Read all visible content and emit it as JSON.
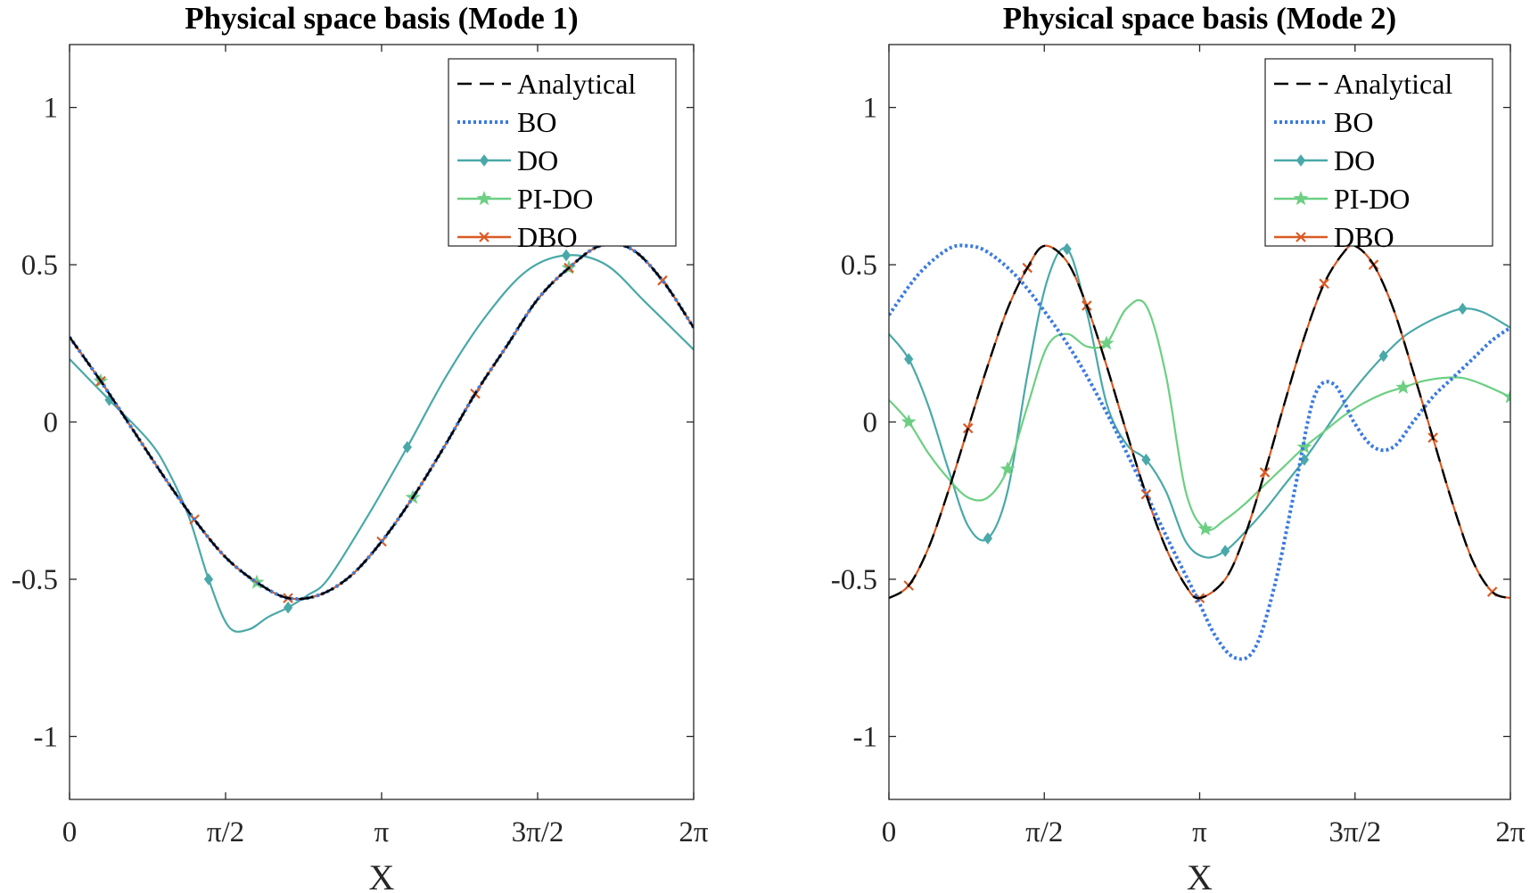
{
  "figure": {
    "panel_count": 2
  },
  "chart_data": [
    {
      "type": "line",
      "title": "Physical space basis (Mode 1)",
      "xlabel": "X",
      "ylabel": "",
      "xlim": [
        0,
        6.2832
      ],
      "ylim": [
        -1.2,
        1.2
      ],
      "xticks": [
        0,
        1.5708,
        3.1416,
        4.7124,
        6.2832
      ],
      "xticklabels": [
        "0",
        "π/2",
        "π",
        "3π/2",
        "2π"
      ],
      "yticks": [
        -1,
        -0.5,
        0,
        0.5,
        1
      ],
      "yticklabels": [
        "-1",
        "-0.5",
        "0",
        "0.5",
        "1"
      ],
      "grid": false,
      "legend_position": "top-right",
      "series": [
        {
          "name": "Analytical",
          "color": "#000000",
          "style": "dashed",
          "marker": "none",
          "x": [
            0,
            0.314,
            0.628,
            0.942,
            1.257,
            1.571,
            1.885,
            2.199,
            2.513,
            2.827,
            3.142,
            3.456,
            3.77,
            4.084,
            4.398,
            4.712,
            5.027,
            5.341,
            5.655,
            5.969,
            6.283
          ],
          "y": [
            0.27,
            0.13,
            -0.02,
            -0.17,
            -0.31,
            -0.43,
            -0.51,
            -0.56,
            -0.55,
            -0.49,
            -0.38,
            -0.24,
            -0.08,
            0.09,
            0.24,
            0.39,
            0.49,
            0.56,
            0.55,
            0.45,
            0.3
          ]
        },
        {
          "name": "BO",
          "color": "#3b7ae0",
          "style": "dotted",
          "marker": "none",
          "x": [
            0,
            0.314,
            0.628,
            0.942,
            1.257,
            1.571,
            1.885,
            2.199,
            2.513,
            2.827,
            3.142,
            3.456,
            3.77,
            4.084,
            4.398,
            4.712,
            5.027,
            5.341,
            5.655,
            5.969,
            6.283
          ],
          "y": [
            0.27,
            0.13,
            -0.02,
            -0.17,
            -0.31,
            -0.43,
            -0.51,
            -0.56,
            -0.55,
            -0.49,
            -0.38,
            -0.24,
            -0.08,
            0.09,
            0.24,
            0.39,
            0.49,
            0.56,
            0.55,
            0.45,
            0.3
          ]
        },
        {
          "name": "DO",
          "color": "#4aa8a8",
          "style": "solid",
          "marker": "diamond",
          "x": [
            0,
            0.4,
            0.8,
            1.0,
            1.2,
            1.4,
            1.6,
            1.8,
            2.0,
            2.2,
            2.4,
            2.6,
            3.0,
            3.4,
            3.8,
            4.2,
            4.6,
            5.0,
            5.4,
            5.8,
            6.283
          ],
          "y": [
            0.2,
            0.07,
            -0.06,
            -0.16,
            -0.3,
            -0.5,
            -0.65,
            -0.66,
            -0.62,
            -0.59,
            -0.55,
            -0.5,
            -0.3,
            -0.08,
            0.15,
            0.34,
            0.48,
            0.53,
            0.5,
            0.38,
            0.23
          ]
        },
        {
          "name": "PI-DO",
          "color": "#6ccf82",
          "style": "solid",
          "marker": "star",
          "x": [
            0,
            0.314,
            0.628,
            0.942,
            1.257,
            1.571,
            1.885,
            2.199,
            2.513,
            2.827,
            3.142,
            3.456,
            3.77,
            4.084,
            4.398,
            4.712,
            5.027,
            5.341,
            5.655,
            5.969,
            6.283
          ],
          "y": [
            0.27,
            0.13,
            -0.02,
            -0.17,
            -0.31,
            -0.43,
            -0.51,
            -0.56,
            -0.55,
            -0.49,
            -0.38,
            -0.24,
            -0.08,
            0.09,
            0.24,
            0.39,
            0.49,
            0.56,
            0.55,
            0.45,
            0.3
          ]
        },
        {
          "name": "DBO",
          "color": "#d95a24",
          "style": "solid",
          "marker": "x",
          "x": [
            0,
            0.314,
            0.628,
            0.942,
            1.257,
            1.571,
            1.885,
            2.199,
            2.513,
            2.827,
            3.142,
            3.456,
            3.77,
            4.084,
            4.398,
            4.712,
            5.027,
            5.341,
            5.655,
            5.969,
            6.283
          ],
          "y": [
            0.27,
            0.13,
            -0.02,
            -0.17,
            -0.31,
            -0.43,
            -0.51,
            -0.56,
            -0.55,
            -0.49,
            -0.38,
            -0.24,
            -0.08,
            0.09,
            0.24,
            0.39,
            0.49,
            0.56,
            0.55,
            0.45,
            0.3
          ]
        }
      ]
    },
    {
      "type": "line",
      "title": "Physical space basis (Mode 2)",
      "xlabel": "X",
      "ylabel": "",
      "xlim": [
        0,
        6.2832
      ],
      "ylim": [
        -1.2,
        1.2
      ],
      "xticks": [
        0,
        1.5708,
        3.1416,
        4.7124,
        6.2832
      ],
      "xticklabels": [
        "0",
        "π/2",
        "π",
        "3π/2",
        "2π"
      ],
      "yticks": [
        -1,
        -0.5,
        0,
        0.5,
        1
      ],
      "yticklabels": [
        "-1",
        "-0.5",
        "0",
        "0.5",
        "1"
      ],
      "grid": false,
      "legend_position": "top-right",
      "series": [
        {
          "name": "Analytical",
          "color": "#000000",
          "style": "dashed",
          "marker": "none",
          "x": [
            0,
            0.2,
            0.4,
            0.6,
            0.8,
            1.0,
            1.2,
            1.4,
            1.571,
            1.8,
            2.0,
            2.2,
            2.4,
            2.6,
            2.8,
            3.0,
            3.142,
            3.4,
            3.6,
            3.8,
            4.0,
            4.2,
            4.4,
            4.6,
            4.712,
            4.9,
            5.1,
            5.3,
            5.5,
            5.7,
            5.9,
            6.1,
            6.283
          ],
          "y": [
            -0.56,
            -0.52,
            -0.4,
            -0.22,
            -0.02,
            0.18,
            0.36,
            0.49,
            0.56,
            0.51,
            0.37,
            0.18,
            -0.03,
            -0.23,
            -0.4,
            -0.52,
            -0.56,
            -0.5,
            -0.36,
            -0.16,
            0.06,
            0.27,
            0.44,
            0.54,
            0.56,
            0.5,
            0.36,
            0.16,
            -0.05,
            -0.26,
            -0.44,
            -0.54,
            -0.56
          ]
        },
        {
          "name": "BO",
          "color": "#3b7ae0",
          "style": "dotted",
          "marker": "none",
          "x": [
            0,
            0.3,
            0.6,
            0.8,
            1.0,
            1.3,
            1.6,
            1.9,
            2.2,
            2.5,
            2.8,
            3.1,
            3.3,
            3.5,
            3.7,
            3.9,
            4.1,
            4.3,
            4.5,
            4.7,
            4.9,
            5.1,
            5.3,
            5.5,
            5.7,
            5.9,
            6.1,
            6.283
          ],
          "y": [
            0.34,
            0.47,
            0.55,
            0.56,
            0.54,
            0.46,
            0.34,
            0.2,
            0.03,
            -0.16,
            -0.36,
            -0.55,
            -0.68,
            -0.75,
            -0.72,
            -0.52,
            -0.22,
            0.08,
            0.12,
            0.0,
            -0.08,
            -0.08,
            0.0,
            0.08,
            0.14,
            0.2,
            0.26,
            0.3
          ]
        },
        {
          "name": "DO",
          "color": "#4aa8a8",
          "style": "solid",
          "marker": "diamond",
          "x": [
            0,
            0.2,
            0.4,
            0.6,
            0.8,
            1.0,
            1.2,
            1.4,
            1.6,
            1.8,
            2.0,
            2.2,
            2.4,
            2.6,
            2.8,
            3.0,
            3.2,
            3.4,
            3.6,
            3.8,
            4.0,
            4.2,
            4.4,
            4.6,
            4.8,
            5.0,
            5.2,
            5.4,
            5.6,
            5.8,
            6.0,
            6.283
          ],
          "y": [
            0.28,
            0.2,
            0.05,
            -0.15,
            -0.33,
            -0.37,
            -0.22,
            0.15,
            0.45,
            0.55,
            0.35,
            0.06,
            -0.07,
            -0.12,
            -0.22,
            -0.38,
            -0.43,
            -0.41,
            -0.35,
            -0.28,
            -0.2,
            -0.12,
            -0.03,
            0.06,
            0.14,
            0.21,
            0.27,
            0.31,
            0.34,
            0.36,
            0.35,
            0.3
          ]
        },
        {
          "name": "PI-DO",
          "color": "#6ccf82",
          "style": "solid",
          "marker": "star",
          "x": [
            0,
            0.2,
            0.4,
            0.6,
            0.8,
            1.0,
            1.2,
            1.4,
            1.6,
            1.8,
            2.0,
            2.2,
            2.4,
            2.6,
            2.8,
            3.0,
            3.2,
            3.4,
            3.6,
            3.8,
            4.0,
            4.2,
            4.4,
            4.6,
            4.8,
            5.0,
            5.2,
            5.4,
            5.6,
            5.8,
            6.0,
            6.283
          ],
          "y": [
            0.07,
            0.0,
            -0.1,
            -0.18,
            -0.24,
            -0.24,
            -0.15,
            0.05,
            0.24,
            0.28,
            0.24,
            0.25,
            0.36,
            0.37,
            0.15,
            -0.22,
            -0.34,
            -0.31,
            -0.26,
            -0.2,
            -0.14,
            -0.08,
            -0.03,
            0.02,
            0.06,
            0.09,
            0.11,
            0.13,
            0.14,
            0.14,
            0.12,
            0.08
          ]
        },
        {
          "name": "DBO",
          "color": "#d95a24",
          "style": "solid",
          "marker": "x",
          "x": [
            0,
            0.2,
            0.4,
            0.6,
            0.8,
            1.0,
            1.2,
            1.4,
            1.571,
            1.8,
            2.0,
            2.2,
            2.4,
            2.6,
            2.8,
            3.0,
            3.142,
            3.4,
            3.6,
            3.8,
            4.0,
            4.2,
            4.4,
            4.6,
            4.712,
            4.9,
            5.1,
            5.3,
            5.5,
            5.7,
            5.9,
            6.1,
            6.283
          ],
          "y": [
            -0.56,
            -0.52,
            -0.4,
            -0.22,
            -0.02,
            0.18,
            0.36,
            0.49,
            0.56,
            0.51,
            0.37,
            0.18,
            -0.03,
            -0.23,
            -0.4,
            -0.52,
            -0.56,
            -0.5,
            -0.36,
            -0.16,
            0.06,
            0.27,
            0.44,
            0.54,
            0.56,
            0.5,
            0.36,
            0.16,
            -0.05,
            -0.26,
            -0.44,
            -0.54,
            -0.56
          ]
        }
      ]
    }
  ]
}
